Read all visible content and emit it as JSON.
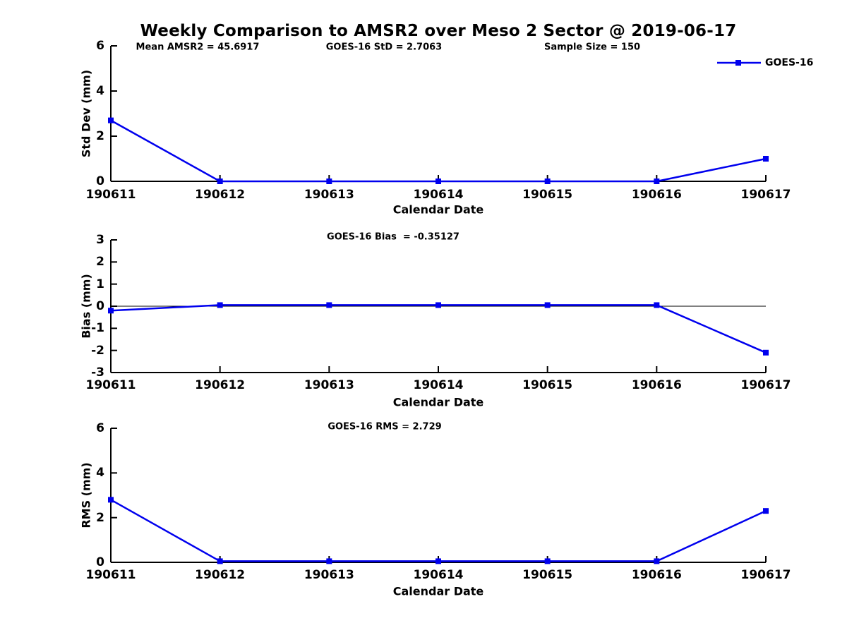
{
  "title": "Weekly Comparison to AMSR2 over Meso 2 Sector @ 2019-06-17",
  "colors": {
    "series": "#0000ee",
    "axis": "#000000",
    "background": "#ffffff",
    "text": "#000000"
  },
  "legend": {
    "label": "GOES-16",
    "position": "top-right",
    "marker": "square"
  },
  "chart_data": [
    {
      "type": "line",
      "name": "std-dev-subplot",
      "annotations": [
        "Mean AMSR2 = 45.6917",
        "GOES-16 StD = 2.7063",
        "Sample Size = 150"
      ],
      "x": [
        "190611",
        "190612",
        "190613",
        "190614",
        "190615",
        "190616",
        "190617"
      ],
      "xlabel": "Calendar Date",
      "ylabel": "Std Dev (mm)",
      "ylim": [
        0,
        6
      ],
      "yticks": [
        0,
        2,
        4,
        6
      ],
      "zero_line": false,
      "grid": false,
      "series": [
        {
          "name": "GOES-16",
          "color": "#0000ee",
          "marker": "square",
          "values": [
            2.7,
            0,
            0,
            0,
            0,
            0,
            1.0
          ]
        }
      ]
    },
    {
      "type": "line",
      "name": "bias-subplot",
      "annotations": [
        "GOES-16 Bias  = -0.35127"
      ],
      "x": [
        "190611",
        "190612",
        "190613",
        "190614",
        "190615",
        "190616",
        "190617"
      ],
      "xlabel": "Calendar Date",
      "ylabel": "Bias (mm)",
      "ylim": [
        -3,
        3
      ],
      "yticks": [
        -3,
        -2,
        -1,
        0,
        1,
        2,
        3
      ],
      "zero_line": true,
      "grid": false,
      "series": [
        {
          "name": "GOES-16",
          "color": "#0000ee",
          "marker": "square",
          "values": [
            -0.2,
            0.05,
            0.05,
            0.05,
            0.05,
            0.05,
            -2.1
          ]
        }
      ]
    },
    {
      "type": "line",
      "name": "rms-subplot",
      "annotations": [
        "GOES-16 RMS = 2.729"
      ],
      "x": [
        "190611",
        "190612",
        "190613",
        "190614",
        "190615",
        "190616",
        "190617"
      ],
      "xlabel": "Calendar Date",
      "ylabel": "RMS (mm)",
      "ylim": [
        0,
        6
      ],
      "yticks": [
        0,
        2,
        4,
        6
      ],
      "zero_line": false,
      "grid": false,
      "series": [
        {
          "name": "GOES-16",
          "color": "#0000ee",
          "marker": "square",
          "values": [
            2.8,
            0.05,
            0.05,
            0.05,
            0.05,
            0.05,
            2.3
          ]
        }
      ]
    }
  ]
}
